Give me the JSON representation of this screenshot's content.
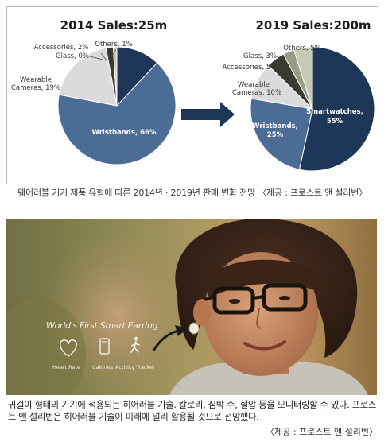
{
  "chart_data": [
    {
      "type": "pie",
      "title": "2014 Sales:25m",
      "categories": [
        "Smartwatches",
        "Wristbands",
        "Wearable Cameras",
        "Accessories",
        "Glass",
        "Others"
      ],
      "values": [
        12,
        66,
        19,
        2,
        0,
        1
      ],
      "labels": {
        "wristbands": "Wristbands, 66%",
        "cameras_line1": "Wearable",
        "cameras_line2": "Cameras, 19%",
        "accessories": "Accessories, 2%",
        "glass": "Glass, 0%",
        "others": "Others, 1%"
      }
    },
    {
      "type": "pie",
      "title": "2019 Sales:200m",
      "categories": [
        "Smartwatches",
        "Wristbands",
        "Wearable Cameras",
        "Accessories",
        "Glass",
        "Others"
      ],
      "values": [
        55,
        25,
        10,
        5,
        3,
        5
      ],
      "labels": {
        "smartwatches_line1": "Smartwatches,",
        "smartwatches_line2": "55%",
        "wristbands_line1": "Wristbands,",
        "wristbands_line2": "25%",
        "cameras_line1": "Wearable",
        "cameras_line2": "Cameras, 10%",
        "accessories": "Accessories, 5%",
        "glass": "Glass, 3%",
        "others": "Others, 5%"
      }
    }
  ],
  "colors": {
    "smartwatches": "#1e3657",
    "wristbands": "#4b6c95",
    "cameras": "#d9dbdc",
    "accessories": "#3a3a31",
    "glass": "#9b9c86",
    "others": "#c8c8b4",
    "arrow": "#1e3657"
  },
  "caption_chart": "웨어러블 기기 제품 유형에 따른 2014년 · 2019년 판매 변화 전망 〈제공 : 프로스트 앤 설리번〉",
  "photo": {
    "overlay_title": "World's First Smart Earring",
    "features": [
      {
        "icon": "heart-icon",
        "label": "Heart Rate"
      },
      {
        "icon": "phone-icon",
        "label": "Calories"
      },
      {
        "icon": "running-figure-icon",
        "label": "Activity Tracker"
      }
    ]
  },
  "caption_photo": "귀걸이 형태의 기기에 적용되는 히어러블 기술. 칼로리, 심박 수, 혈압 등을 모니터링할 수 있다. 프로스트 앤 설리번은 히어러블 기술이 미래에 널리 활용될 것으로 전망했다.",
  "caption_photo_source": "〈제공 : 프로스트 앤 설리번〉"
}
